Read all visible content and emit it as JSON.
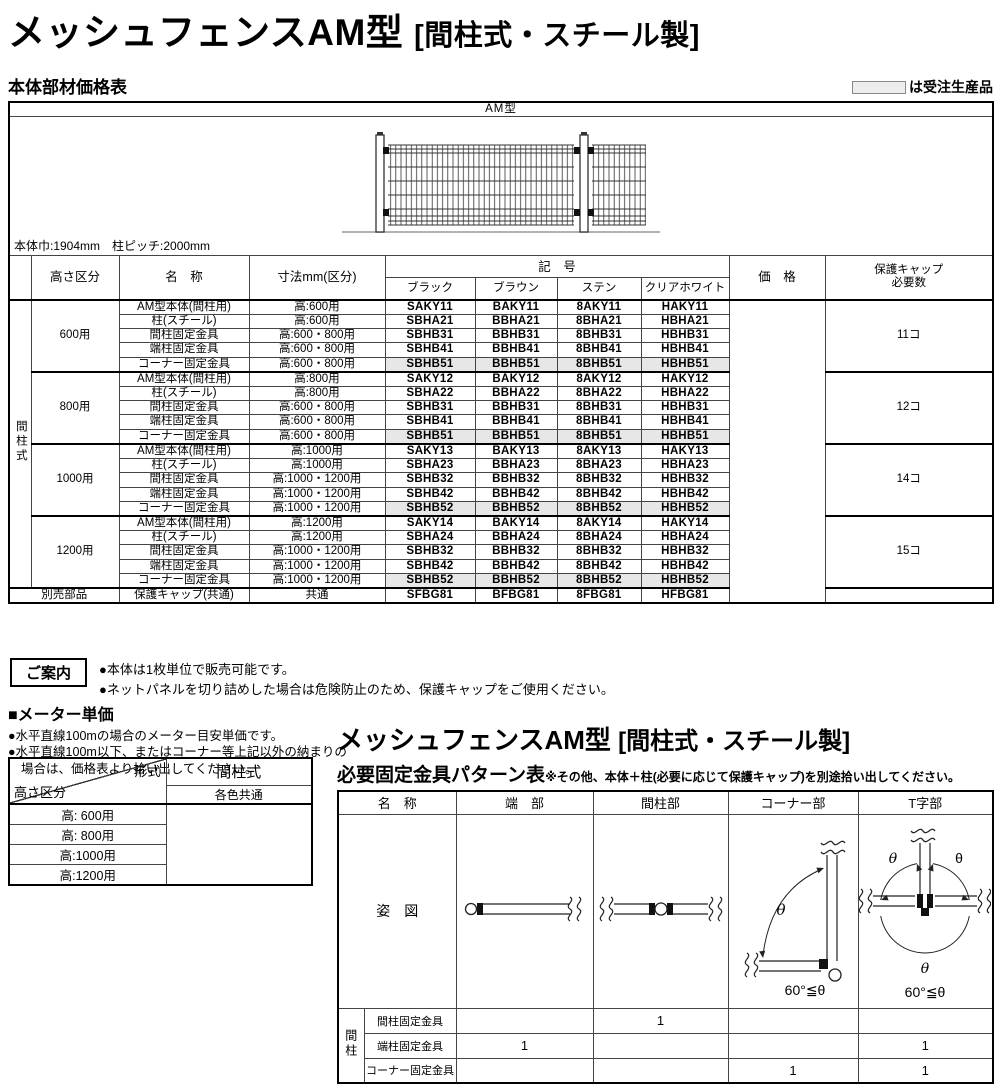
{
  "page": {
    "title": "メッシュフェンスAM型",
    "title_suffix": "[間柱式・スチール製]",
    "price_table_heading": "本体部材価格表",
    "legend_text": "は受注生産品"
  },
  "main_table": {
    "model_header": "AM型",
    "spec_note": "本体巾:1904mm　柱ピッチ:2000mm",
    "side_label": "間柱式",
    "col_headers": {
      "height": "高さ区分",
      "name": "名　称",
      "size": "寸法mm(区分)",
      "code": "記　号",
      "colors": [
        "ブラック",
        "ブラウン",
        "ステン",
        "クリアホワイト"
      ],
      "price": "価　格",
      "cap_line1": "保護キャップ",
      "cap_line2": "必要数"
    },
    "groups": [
      {
        "height": "600用",
        "cap_count": "11コ",
        "rows": [
          {
            "name": "AM型本体(間柱用)",
            "size": "高:600用",
            "codes": [
              "SAKY11",
              "BAKY11",
              "8AKY11",
              "HAKY11"
            ],
            "shaded": false
          },
          {
            "name": "柱(スチール)",
            "size": "高:600用",
            "codes": [
              "SBHA21",
              "BBHA21",
              "8BHA21",
              "HBHA21"
            ],
            "shaded": false
          },
          {
            "name": "間柱固定金具",
            "size": "高:600・800用",
            "codes": [
              "SBHB31",
              "BBHB31",
              "8BHB31",
              "HBHB31"
            ],
            "shaded": false
          },
          {
            "name": "端柱固定金具",
            "size": "高:600・800用",
            "codes": [
              "SBHB41",
              "BBHB41",
              "8BHB41",
              "HBHB41"
            ],
            "shaded": false
          },
          {
            "name": "コーナー固定金具",
            "size": "高:600・800用",
            "codes": [
              "SBHB51",
              "BBHB51",
              "8BHB51",
              "HBHB51"
            ],
            "shaded": true
          }
        ]
      },
      {
        "height": "800用",
        "cap_count": "12コ",
        "rows": [
          {
            "name": "AM型本体(間柱用)",
            "size": "高:800用",
            "codes": [
              "SAKY12",
              "BAKY12",
              "8AKY12",
              "HAKY12"
            ],
            "shaded": false
          },
          {
            "name": "柱(スチール)",
            "size": "高:800用",
            "codes": [
              "SBHA22",
              "BBHA22",
              "8BHA22",
              "HBHA22"
            ],
            "shaded": false
          },
          {
            "name": "間柱固定金具",
            "size": "高:600・800用",
            "codes": [
              "SBHB31",
              "BBHB31",
              "8BHB31",
              "HBHB31"
            ],
            "shaded": false
          },
          {
            "name": "端柱固定金具",
            "size": "高:600・800用",
            "codes": [
              "SBHB41",
              "BBHB41",
              "8BHB41",
              "HBHB41"
            ],
            "shaded": false
          },
          {
            "name": "コーナー固定金具",
            "size": "高:600・800用",
            "codes": [
              "SBHB51",
              "BBHB51",
              "8BHB51",
              "HBHB51"
            ],
            "shaded": true
          }
        ]
      },
      {
        "height": "1000用",
        "cap_count": "14コ",
        "rows": [
          {
            "name": "AM型本体(間柱用)",
            "size": "高:1000用",
            "codes": [
              "SAKY13",
              "BAKY13",
              "8AKY13",
              "HAKY13"
            ],
            "shaded": false
          },
          {
            "name": "柱(スチール)",
            "size": "高:1000用",
            "codes": [
              "SBHA23",
              "BBHA23",
              "8BHA23",
              "HBHA23"
            ],
            "shaded": false
          },
          {
            "name": "間柱固定金具",
            "size": "高:1000・1200用",
            "codes": [
              "SBHB32",
              "BBHB32",
              "8BHB32",
              "HBHB32"
            ],
            "shaded": false
          },
          {
            "name": "端柱固定金具",
            "size": "高:1000・1200用",
            "codes": [
              "SBHB42",
              "BBHB42",
              "8BHB42",
              "HBHB42"
            ],
            "shaded": false
          },
          {
            "name": "コーナー固定金具",
            "size": "高:1000・1200用",
            "codes": [
              "SBHB52",
              "BBHB52",
              "8BHB52",
              "HBHB52"
            ],
            "shaded": true
          }
        ]
      },
      {
        "height": "1200用",
        "cap_count": "15コ",
        "rows": [
          {
            "name": "AM型本体(間柱用)",
            "size": "高:1200用",
            "codes": [
              "SAKY14",
              "BAKY14",
              "8AKY14",
              "HAKY14"
            ],
            "shaded": false
          },
          {
            "name": "柱(スチール)",
            "size": "高:1200用",
            "codes": [
              "SBHA24",
              "BBHA24",
              "8BHA24",
              "HBHA24"
            ],
            "shaded": false
          },
          {
            "name": "間柱固定金具",
            "size": "高:1000・1200用",
            "codes": [
              "SBHB32",
              "BBHB32",
              "8BHB32",
              "HBHB32"
            ],
            "shaded": false
          },
          {
            "name": "端柱固定金具",
            "size": "高:1000・1200用",
            "codes": [
              "SBHB42",
              "BBHB42",
              "8BHB42",
              "HBHB42"
            ],
            "shaded": false
          },
          {
            "name": "コーナー固定金具",
            "size": "高:1000・1200用",
            "codes": [
              "SBHB52",
              "BBHB52",
              "8BHB52",
              "HBHB52"
            ],
            "shaded": true
          }
        ]
      }
    ],
    "extra_row": {
      "label": "別売部品",
      "name": "保護キャップ(共通)",
      "size": "共通",
      "codes": [
        "SFBG81",
        "BFBG81",
        "8FBG81",
        "HFBG81"
      ]
    }
  },
  "guide": {
    "label": "ご案内",
    "notes": [
      "●本体は1枚単位で販売可能です。",
      "●ネットパネルを切り詰めした場合は危険防止のため、保護キャップをご使用ください。"
    ]
  },
  "meter": {
    "heading": "■メーター単価",
    "notes": [
      "●水平直線100mの場合のメーター目安単価です。",
      "●水平直線100m以下、またはコーナー等上記以外の納まりの場合は、価格表より拾い出してください。"
    ]
  },
  "meter_table": {
    "corner_top": "形式",
    "corner_bottom": "高さ区分",
    "col_header": "間柱式",
    "col_subheader": "各色共通",
    "rows": [
      "高: 600用",
      "高: 800用",
      "高:1000用",
      "高:1200用"
    ]
  },
  "pattern": {
    "title": "メッシュフェンスAM型",
    "title_suffix": "[間柱式・スチール製]",
    "subtitle": "必要固定金具パターン表",
    "subtitle_note": "※その他、本体＋柱(必要に応じて保護キャップ)を別途拾い出してください。",
    "headers": [
      "名　称",
      "端　部",
      "間柱部",
      "コーナー部",
      "T字部"
    ],
    "figure_label": "姿　図",
    "side_label": "間柱",
    "theta": "θ",
    "angle_note": "60°≦θ",
    "rows": [
      {
        "name": "間柱固定金具",
        "values": [
          "",
          "1",
          "",
          ""
        ]
      },
      {
        "name": "端柱固定金具",
        "values": [
          "1",
          "",
          "",
          "1"
        ]
      },
      {
        "name": "コーナー固定金具",
        "values": [
          "",
          "",
          "1",
          "1"
        ]
      }
    ]
  }
}
